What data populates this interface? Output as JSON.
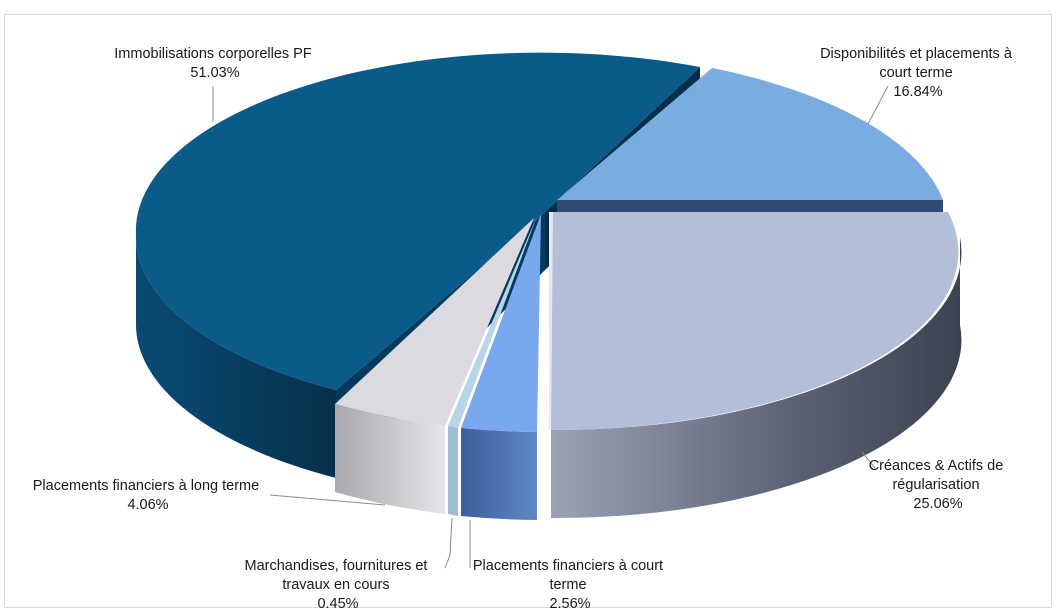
{
  "chart_data": {
    "type": "pie",
    "title": "",
    "slices": [
      {
        "name": "Immobilisations corporelles PF",
        "value": 51.03,
        "label_value": "51.03%",
        "color": "#0a5a8a"
      },
      {
        "name": "Disponibilités et placements à court terme",
        "value": 16.84,
        "label_value": "16.84%",
        "color": "#79ade2"
      },
      {
        "name": "Créances & Actifs de régularisation",
        "value": 25.06,
        "label_value": "25.06%",
        "color": "#b3bfd9"
      },
      {
        "name": "Placements financiers à court terme",
        "value": 2.56,
        "label_value": "2.56%",
        "color": "#7aa8ef"
      },
      {
        "name": "Marchandises, fournitures et travaux en cours",
        "value": 0.45,
        "label_value": "0.45%",
        "color": "#b8d4e8"
      },
      {
        "name": "Placements financiers à long terme",
        "value": 4.06,
        "label_value": "4.06%",
        "color": "#dcdae0"
      }
    ],
    "legend": "none",
    "style": "3d-exploded"
  }
}
